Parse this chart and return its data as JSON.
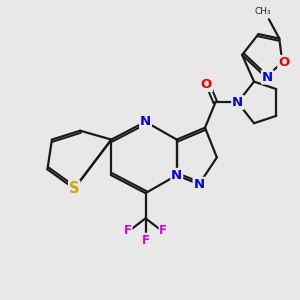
{
  "bg_color": "#e8e8e8",
  "bond_color": "#1a1a1a",
  "bond_width": 1.6,
  "atom_colors": {
    "N": "#0000ee",
    "O": "#ee0000",
    "S": "#ccaa00",
    "F": "#dd00dd",
    "C": "#1a1a1a"
  },
  "font_size": 9.5
}
